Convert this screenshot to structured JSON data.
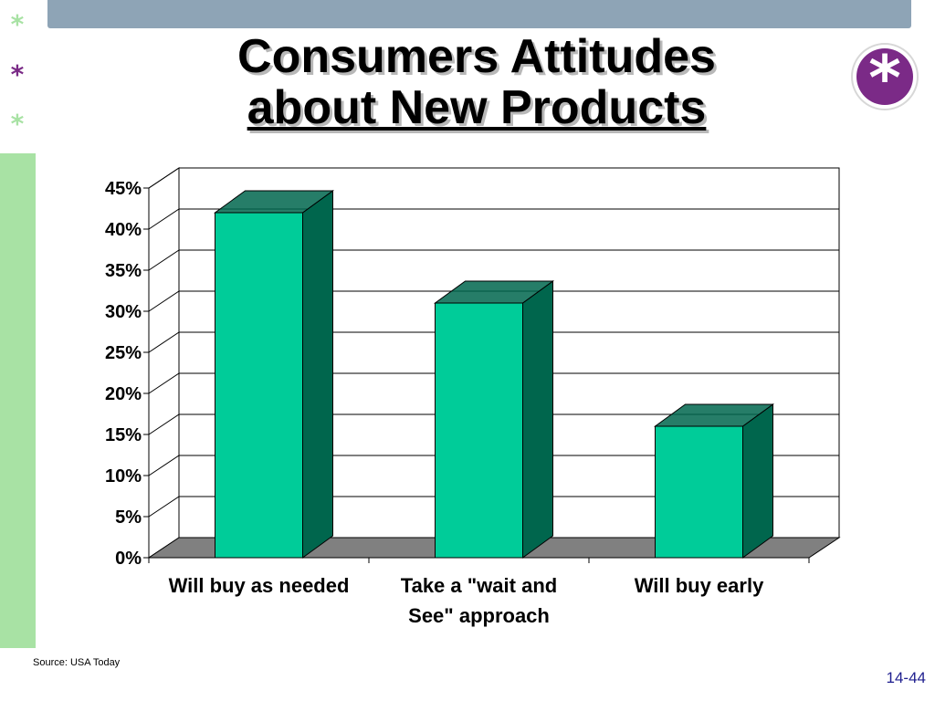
{
  "slide": {
    "title_line1": "Consumers Attitudes",
    "title_line2": "about New Products",
    "source": "Source: USA Today",
    "page_number": "14-44",
    "decor_star": "*",
    "badge_icon": "*",
    "colors": {
      "top_bar": "#8ea4b6",
      "side_bar": "#a8e2a4",
      "badge": "#7b2a87",
      "bar_front": "#00cc99",
      "bar_side": "#00664d",
      "floor": "#808080"
    }
  },
  "chart_data": {
    "type": "bar",
    "title": "",
    "xlabel": "",
    "ylabel": "",
    "categories": [
      [
        "Will buy as needed"
      ],
      [
        "Take a \"wait and",
        "See\" approach"
      ],
      [
        "Will buy early"
      ]
    ],
    "values": [
      42,
      31,
      16
    ],
    "ylim": [
      0,
      45
    ],
    "yticks": [
      0,
      5,
      10,
      15,
      20,
      25,
      30,
      35,
      40,
      45
    ],
    "ytick_labels": [
      "0%",
      "5%",
      "10%",
      "15%",
      "20%",
      "25%",
      "30%",
      "35%",
      "40%",
      "45%"
    ],
    "grid": true,
    "three_d": true,
    "legend": "none"
  }
}
